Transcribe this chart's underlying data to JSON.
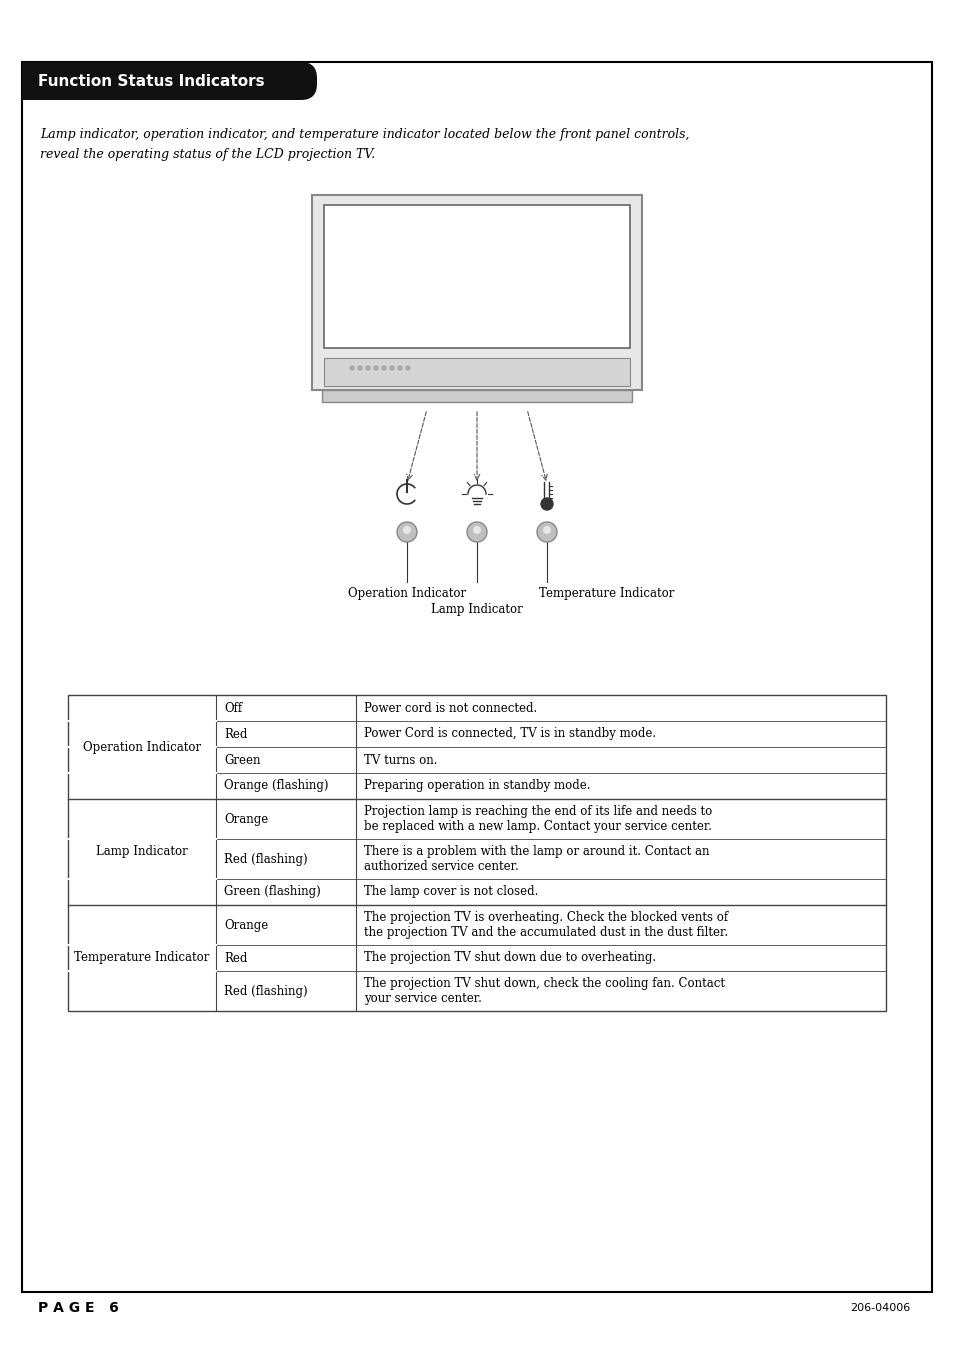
{
  "title": "Function Status Indicators",
  "intro_text_line1": "Lamp indicator, operation indicator, and temperature indicator located below the front panel controls,",
  "intro_text_line2": "reveal the operating status of the LCD projection TV.",
  "diagram_labels": {
    "operation": "Operation Indicator",
    "lamp": "Lamp Indicator",
    "temperature": "Temperature Indicator"
  },
  "table_rows": [
    {
      "group": "Operation Indicator",
      "color_label": "Off",
      "description": "Power cord is not connected.",
      "group_start": true,
      "group_size": 4
    },
    {
      "group": "",
      "color_label": "Red",
      "description": "Power Cord is connected, TV is in standby mode.",
      "group_start": false,
      "group_size": 0
    },
    {
      "group": "",
      "color_label": "Green",
      "description": "TV turns on.",
      "group_start": false,
      "group_size": 0
    },
    {
      "group": "",
      "color_label": "Orange (flashing)",
      "description": "Preparing operation in standby mode.",
      "group_start": false,
      "group_size": 0
    },
    {
      "group": "Lamp Indicator",
      "color_label": "Orange",
      "description": "Projection lamp is reaching the end of its life and needs to\nbe replaced with a new lamp. Contact your service center.",
      "group_start": true,
      "group_size": 3
    },
    {
      "group": "",
      "color_label": "Red (flashing)",
      "description": "There is a problem with the lamp or around it. Contact an\nauthorized service center.",
      "group_start": false,
      "group_size": 0
    },
    {
      "group": "",
      "color_label": "Green (flashing)",
      "description": "The lamp cover is not closed.",
      "group_start": false,
      "group_size": 0
    },
    {
      "group": "Temperature Indicator",
      "color_label": "Orange",
      "description": "The projection TV is overheating. Check the blocked vents of\nthe projection TV and the accumulated dust in the dust filter.",
      "group_start": true,
      "group_size": 3
    },
    {
      "group": "",
      "color_label": "Red",
      "description": "The projection TV shut down due to overheating.",
      "group_start": false,
      "group_size": 0
    },
    {
      "group": "",
      "color_label": "Red (flashing)",
      "description": "The projection TV shut down, check the cooling fan. Contact\nyour service center.",
      "group_start": false,
      "group_size": 0
    }
  ],
  "page_num": "P A G E   6",
  "doc_num": "206-04006",
  "bg_color": "#ffffff",
  "border_color": "#000000",
  "header_bg": "#111111",
  "header_text_color": "#ffffff",
  "table_text_color": "#000000"
}
